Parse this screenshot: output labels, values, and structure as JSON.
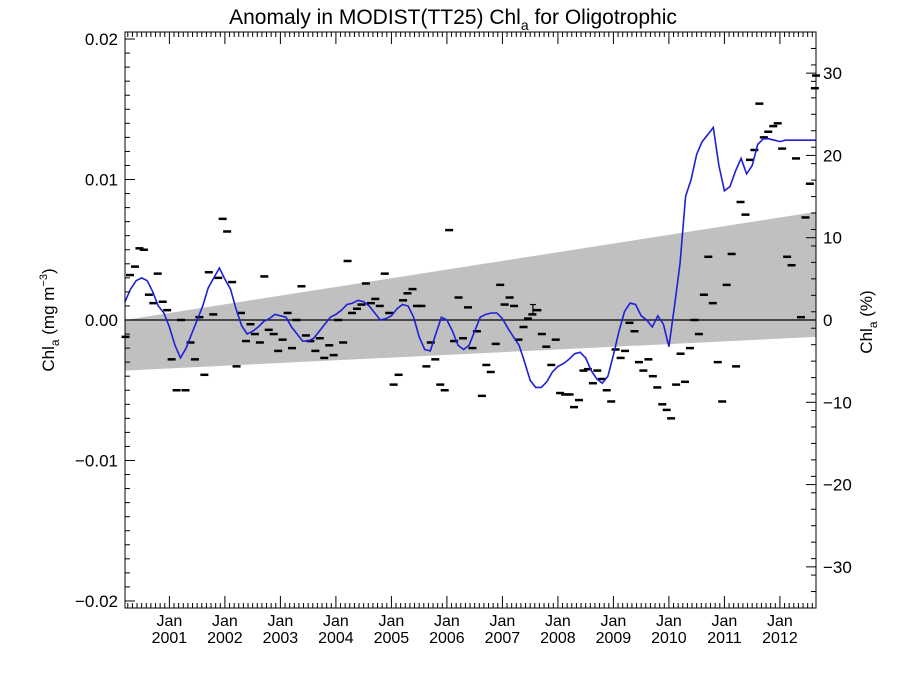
{
  "chart_data": {
    "type": "line",
    "title": "Anomaly in MODIST(TT25) Chl",
    "title_sub": "a",
    "title_suffix": " for Oligotrophic",
    "ylabel_left": {
      "base": "Chl",
      "sub": "a",
      "rest": " (mg m",
      "sup": "−3",
      "close": ")"
    },
    "ylabel_right": {
      "base": "Chl",
      "sub": "a",
      "rest": " (%)"
    },
    "xlim": [
      2000.2,
      2012.65
    ],
    "ylim_left": [
      -0.0205,
      0.0205
    ],
    "ylim_right": [
      -35,
      35
    ],
    "x_ticks": [
      {
        "value": 2001.0,
        "month": "Jan",
        "year": "2001"
      },
      {
        "value": 2002.0,
        "month": "Jan",
        "year": "2002"
      },
      {
        "value": 2003.0,
        "month": "Jan",
        "year": "2003"
      },
      {
        "value": 2004.0,
        "month": "Jan",
        "year": "2004"
      },
      {
        "value": 2005.0,
        "month": "Jan",
        "year": "2005"
      },
      {
        "value": 2006.0,
        "month": "Jan",
        "year": "2006"
      },
      {
        "value": 2007.0,
        "month": "Jan",
        "year": "2007"
      },
      {
        "value": 2008.0,
        "month": "Jan",
        "year": "2008"
      },
      {
        "value": 2009.0,
        "month": "Jan",
        "year": "2009"
      },
      {
        "value": 2010.0,
        "month": "Jan",
        "year": "2010"
      },
      {
        "value": 2011.0,
        "month": "Jan",
        "year": "2011"
      },
      {
        "value": 2012.0,
        "month": "Jan",
        "year": "2012"
      }
    ],
    "y_ticks_left": [
      {
        "value": 0.02,
        "label": "0.02"
      },
      {
        "value": 0.01,
        "label": "0.01"
      },
      {
        "value": 0.0,
        "label": "0.00"
      },
      {
        "value": -0.01,
        "label": "−0.01"
      },
      {
        "value": -0.02,
        "label": "−0.02"
      }
    ],
    "y_ticks_right": [
      {
        "value": 30,
        "label": "30"
      },
      {
        "value": 20,
        "label": "20"
      },
      {
        "value": 10,
        "label": "10"
      },
      {
        "value": 0,
        "label": "0"
      },
      {
        "value": -10,
        "label": "−10"
      },
      {
        "value": -20,
        "label": "−20"
      },
      {
        "value": -30,
        "label": "−30"
      }
    ],
    "grid": false,
    "colors": {
      "line": "#1f1fd6",
      "band": "#c0c0c0",
      "markers": "#000000",
      "zero_line": "#000000"
    },
    "uncertainty_band": {
      "x_start": 2000.2,
      "x_end": 2012.65,
      "upper_start": 0.0,
      "upper_end": 0.0077,
      "lower_start": -0.0036,
      "lower_end": -0.0012
    },
    "error_bar": {
      "x": 2007.55,
      "y": 0.00075,
      "low": 0.0004,
      "high": 0.0011
    },
    "monthly_points": [
      [
        2000.21,
        -0.0012
      ],
      [
        2000.29,
        0.0032
      ],
      [
        2000.38,
        0.0038
      ],
      [
        2000.46,
        0.0051
      ],
      [
        2000.54,
        0.005
      ],
      [
        2000.63,
        0.0018
      ],
      [
        2000.71,
        0.0012
      ],
      [
        2000.79,
        0.0033
      ],
      [
        2000.88,
        0.0013
      ],
      [
        2000.96,
        0.0007
      ],
      [
        2001.04,
        -0.0028
      ],
      [
        2001.13,
        -0.005
      ],
      [
        2001.21,
        0.0
      ],
      [
        2001.29,
        -0.005
      ],
      [
        2001.38,
        -0.0016
      ],
      [
        2001.46,
        -0.0028
      ],
      [
        2001.54,
        0.0002
      ],
      [
        2001.63,
        -0.0039
      ],
      [
        2001.71,
        0.0034
      ],
      [
        2001.79,
        0.0004
      ],
      [
        2001.88,
        0.003
      ],
      [
        2001.96,
        0.0072
      ],
      [
        2002.04,
        0.0063
      ],
      [
        2002.13,
        0.0027
      ],
      [
        2002.21,
        -0.0033
      ],
      [
        2002.29,
        0.0005
      ],
      [
        2002.38,
        -0.0015
      ],
      [
        2002.46,
        -0.0003
      ],
      [
        2002.54,
        -0.001
      ],
      [
        2002.63,
        -0.0016
      ],
      [
        2002.71,
        0.0031
      ],
      [
        2002.79,
        -0.0007
      ],
      [
        2002.88,
        -0.001
      ],
      [
        2002.96,
        -0.0022
      ],
      [
        2003.04,
        -0.0014
      ],
      [
        2003.13,
        0.0005
      ],
      [
        2003.21,
        -0.002
      ],
      [
        2003.29,
        0.0
      ],
      [
        2003.38,
        0.0024
      ],
      [
        2003.46,
        -0.0011
      ],
      [
        2003.54,
        -0.0015
      ],
      [
        2003.63,
        -0.0022
      ],
      [
        2003.71,
        -0.0013
      ],
      [
        2003.79,
        -0.0027
      ],
      [
        2003.88,
        -0.0018
      ],
      [
        2003.96,
        -0.0025
      ],
      [
        2004.04,
        0.0
      ],
      [
        2004.13,
        -0.0016
      ],
      [
        2004.21,
        0.0042
      ],
      [
        2004.29,
        0.0005
      ],
      [
        2004.38,
        0.0008
      ],
      [
        2004.46,
        0.0011
      ],
      [
        2004.54,
        0.0026
      ],
      [
        2004.63,
        0.0012
      ],
      [
        2004.71,
        0.0015
      ],
      [
        2004.79,
        0.001
      ],
      [
        2004.88,
        0.0033
      ],
      [
        2004.96,
        0.0005
      ],
      [
        2005.04,
        -0.0046
      ],
      [
        2005.13,
        -0.0039
      ],
      [
        2005.21,
        0.0014
      ],
      [
        2005.29,
        0.0019
      ],
      [
        2005.38,
        0.0022
      ],
      [
        2005.46,
        0.001
      ],
      [
        2005.54,
        0.001
      ],
      [
        2005.63,
        -0.0033
      ],
      [
        2005.71,
        -0.0016
      ],
      [
        2005.79,
        -0.0028
      ],
      [
        2005.88,
        -0.0046
      ],
      [
        2005.96,
        -0.005
      ],
      [
        2006.04,
        0.0064
      ],
      [
        2006.13,
        -0.0015
      ],
      [
        2006.21,
        0.0016
      ],
      [
        2006.29,
        -0.0013
      ],
      [
        2006.38,
        0.0009
      ],
      [
        2006.46,
        -0.002
      ],
      [
        2006.54,
        -0.0008
      ],
      [
        2006.63,
        -0.0054
      ],
      [
        2006.71,
        -0.0032
      ],
      [
        2006.79,
        -0.0037
      ],
      [
        2006.88,
        -0.0017
      ],
      [
        2006.96,
        0.0025
      ],
      [
        2007.04,
        0.0011
      ],
      [
        2007.13,
        0.0016
      ],
      [
        2007.21,
        0.001
      ],
      [
        2007.29,
        -0.0014
      ],
      [
        2007.38,
        -0.0005
      ],
      [
        2007.46,
        0.0001
      ],
      [
        2007.54,
        0.0004
      ],
      [
        2007.63,
        0.0007
      ],
      [
        2007.71,
        -0.001
      ],
      [
        2007.79,
        -0.0019
      ],
      [
        2007.88,
        -0.0032
      ],
      [
        2007.96,
        -0.0014
      ],
      [
        2008.04,
        -0.0052
      ],
      [
        2008.13,
        -0.0053
      ],
      [
        2008.21,
        -0.0053
      ],
      [
        2008.29,
        -0.0062
      ],
      [
        2008.38,
        -0.0057
      ],
      [
        2008.46,
        -0.0036
      ],
      [
        2008.54,
        -0.0035
      ],
      [
        2008.63,
        -0.0045
      ],
      [
        2008.71,
        -0.0036
      ],
      [
        2008.79,
        -0.0042
      ],
      [
        2008.88,
        -0.005
      ],
      [
        2008.96,
        -0.0058
      ],
      [
        2009.04,
        -0.0021
      ],
      [
        2009.13,
        -0.0027
      ],
      [
        2009.21,
        -0.0022
      ],
      [
        2009.29,
        -0.0002
      ],
      [
        2009.38,
        -0.0008
      ],
      [
        2009.46,
        -0.003
      ],
      [
        2009.54,
        -0.0036
      ],
      [
        2009.63,
        -0.0028
      ],
      [
        2009.71,
        -0.004
      ],
      [
        2009.79,
        -0.0048
      ],
      [
        2009.88,
        -0.006
      ],
      [
        2009.96,
        -0.0064
      ],
      [
        2010.04,
        -0.007
      ],
      [
        2010.13,
        -0.0046
      ],
      [
        2010.21,
        -0.0024
      ],
      [
        2010.29,
        -0.0044
      ],
      [
        2010.38,
        -0.002
      ],
      [
        2010.46,
        0.0
      ],
      [
        2010.54,
        -0.001
      ],
      [
        2010.63,
        0.0018
      ],
      [
        2010.71,
        0.0045
      ],
      [
        2010.79,
        0.0012
      ],
      [
        2010.88,
        -0.003
      ],
      [
        2010.96,
        -0.0058
      ],
      [
        2011.04,
        0.0025
      ],
      [
        2011.13,
        0.0047
      ],
      [
        2011.21,
        -0.0033
      ],
      [
        2011.29,
        0.0084
      ],
      [
        2011.38,
        0.0075
      ],
      [
        2011.46,
        0.0114
      ],
      [
        2011.54,
        0.0121
      ],
      [
        2011.63,
        0.0154
      ],
      [
        2011.71,
        0.013
      ],
      [
        2011.79,
        0.0134
      ],
      [
        2011.88,
        0.0138
      ],
      [
        2011.96,
        0.014
      ],
      [
        2012.04,
        0.0122
      ],
      [
        2012.13,
        0.0045
      ],
      [
        2012.21,
        0.0039
      ],
      [
        2012.29,
        0.0115
      ],
      [
        2012.38,
        0.0002
      ],
      [
        2012.46,
        0.0073
      ],
      [
        2012.54,
        0.0097
      ],
      [
        2012.63,
        0.0165
      ],
      [
        2012.65,
        0.0174
      ]
    ],
    "smoothed_series": {
      "name": "",
      "x": [
        2000.2,
        2000.3,
        2000.4,
        2000.5,
        2000.6,
        2000.7,
        2000.8,
        2000.9,
        2001.0,
        2001.1,
        2001.2,
        2001.3,
        2001.4,
        2001.5,
        2001.6,
        2001.7,
        2001.8,
        2001.9,
        2002.0,
        2002.1,
        2002.2,
        2002.3,
        2002.4,
        2002.5,
        2002.6,
        2002.7,
        2002.8,
        2002.9,
        2003.0,
        2003.1,
        2003.2,
        2003.3,
        2003.4,
        2003.5,
        2003.6,
        2003.7,
        2003.8,
        2003.9,
        2004.0,
        2004.1,
        2004.2,
        2004.3,
        2004.4,
        2004.5,
        2004.6,
        2004.7,
        2004.8,
        2004.9,
        2005.0,
        2005.1,
        2005.2,
        2005.3,
        2005.4,
        2005.5,
        2005.6,
        2005.7,
        2005.8,
        2005.9,
        2006.0,
        2006.1,
        2006.2,
        2006.3,
        2006.4,
        2006.5,
        2006.6,
        2006.7,
        2006.8,
        2006.9,
        2007.0,
        2007.1,
        2007.2,
        2007.3,
        2007.4,
        2007.5,
        2007.6,
        2007.7,
        2007.8,
        2007.9,
        2008.0,
        2008.1,
        2008.2,
        2008.3,
        2008.4,
        2008.5,
        2008.6,
        2008.7,
        2008.8,
        2008.9,
        2009.0,
        2009.1,
        2009.2,
        2009.3,
        2009.4,
        2009.5,
        2009.6,
        2009.7,
        2009.8,
        2009.9,
        2010.0,
        2010.1,
        2010.2,
        2010.3,
        2010.4,
        2010.5,
        2010.6,
        2010.7,
        2010.8,
        2010.9,
        2011.0,
        2011.1,
        2011.2,
        2011.3,
        2011.4,
        2011.5,
        2011.6,
        2011.7,
        2011.8,
        2011.9,
        2012.0,
        2012.1,
        2012.2,
        2012.3,
        2012.4,
        2012.5,
        2012.6,
        2012.65
      ],
      "y": [
        0.0013,
        0.0022,
        0.0028,
        0.003,
        0.0028,
        0.002,
        0.001,
        0.0005,
        -0.0005,
        -0.0018,
        -0.0027,
        -0.002,
        -0.001,
        0.0,
        0.001,
        0.0023,
        0.003,
        0.0037,
        0.0029,
        0.0022,
        0.0008,
        -0.0004,
        -0.001,
        -0.0008,
        -0.0005,
        -0.0001,
        0.0001,
        0.0004,
        0.0003,
        0.0002,
        -0.0005,
        -0.001,
        -0.0015,
        -0.0015,
        -0.0013,
        -0.0008,
        -0.0003,
        0.0002,
        0.0004,
        0.0007,
        0.0011,
        0.0012,
        0.0014,
        0.0013,
        0.001,
        0.0005,
        0.0,
        0.0001,
        0.0003,
        0.0008,
        0.0011,
        0.001,
        0.0002,
        -0.0012,
        -0.0021,
        -0.0022,
        -0.001,
        0.0002,
        0.0,
        -0.0008,
        -0.0018,
        -0.0021,
        -0.0018,
        -0.0008,
        0.0002,
        0.0004,
        0.0005,
        0.0005,
        0.0001,
        -0.0006,
        -0.0012,
        -0.0018,
        -0.003,
        -0.0043,
        -0.0048,
        -0.0048,
        -0.0044,
        -0.0037,
        -0.0033,
        -0.0031,
        -0.0028,
        -0.0024,
        -0.0023,
        -0.0027,
        -0.0036,
        -0.0042,
        -0.0045,
        -0.004,
        -0.0025,
        -0.0008,
        0.0006,
        0.0012,
        0.0011,
        0.0003,
        0.0,
        -0.0005,
        0.0003,
        -0.0003,
        -0.0019,
        0.001,
        0.004,
        0.0088,
        0.01,
        0.0118,
        0.0127,
        0.0132,
        0.0137,
        0.011,
        0.0092,
        0.0095,
        0.0106,
        0.0115,
        0.0104,
        0.011,
        0.0125,
        0.0129,
        0.0129,
        0.0128,
        0.0127,
        0.0128,
        0.0128,
        0.0128,
        0.0128,
        0.0128,
        0.0128,
        0.0128
      ]
    }
  }
}
